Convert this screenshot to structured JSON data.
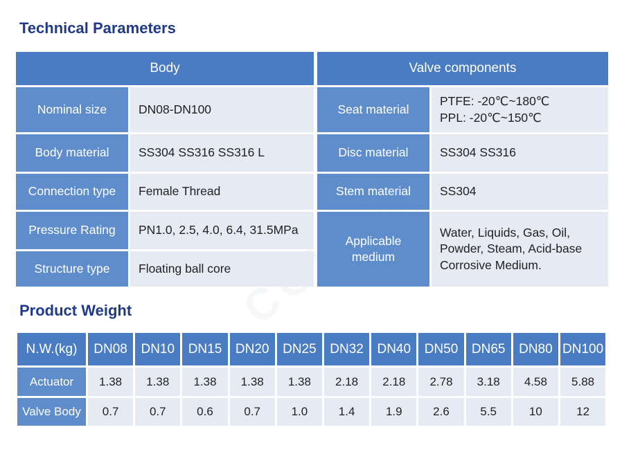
{
  "watermark": "COVNA",
  "tech": {
    "title": "Technical Parameters",
    "body_header": "Body",
    "valve_header": "Valve components",
    "body_rows": [
      {
        "label": "Nominal size",
        "value": "DN08-DN100"
      },
      {
        "label": "Body material",
        "value": "SS304  SS316  SS316 L"
      },
      {
        "label": "Connection type",
        "value": "Female Thread"
      },
      {
        "label": "Pressure Rating",
        "value": "PN1.0, 2.5, 4.0, 6.4, 31.5MPa"
      },
      {
        "label": "Structure type",
        "value": "Floating ball core"
      }
    ],
    "valve_rows": [
      {
        "label": "Seat material",
        "lines": [
          "PTFE: -20℃~180℃",
          "PPL: -20℃~150℃"
        ]
      },
      {
        "label": "Disc material",
        "lines": [
          "SS304  SS316"
        ]
      },
      {
        "label": "Stem material",
        "lines": [
          "SS304"
        ]
      },
      {
        "label": "Applicable medium",
        "lines": [
          "Water, Liquids, Gas, Oil,",
          "Powder, Steam, Acid-base",
          "Corrosive Medium."
        ]
      }
    ]
  },
  "weight": {
    "title": "Product Weight",
    "header_label": "N.W.(kg)",
    "sizes": [
      "DN08",
      "DN10",
      "DN15",
      "DN20",
      "DN25",
      "DN32",
      "DN40",
      "DN50",
      "DN65",
      "DN80",
      "DN100"
    ],
    "rows": [
      {
        "label": "Actuator",
        "values": [
          "1.38",
          "1.38",
          "1.38",
          "1.38",
          "1.38",
          "2.18",
          "2.18",
          "2.78",
          "3.18",
          "4.58",
          "5.88"
        ]
      },
      {
        "label": "Valve Body",
        "values": [
          "0.7",
          "0.7",
          "0.6",
          "0.7",
          "1.0",
          "1.4",
          "1.9",
          "2.6",
          "5.5",
          "10",
          "12"
        ]
      }
    ]
  }
}
